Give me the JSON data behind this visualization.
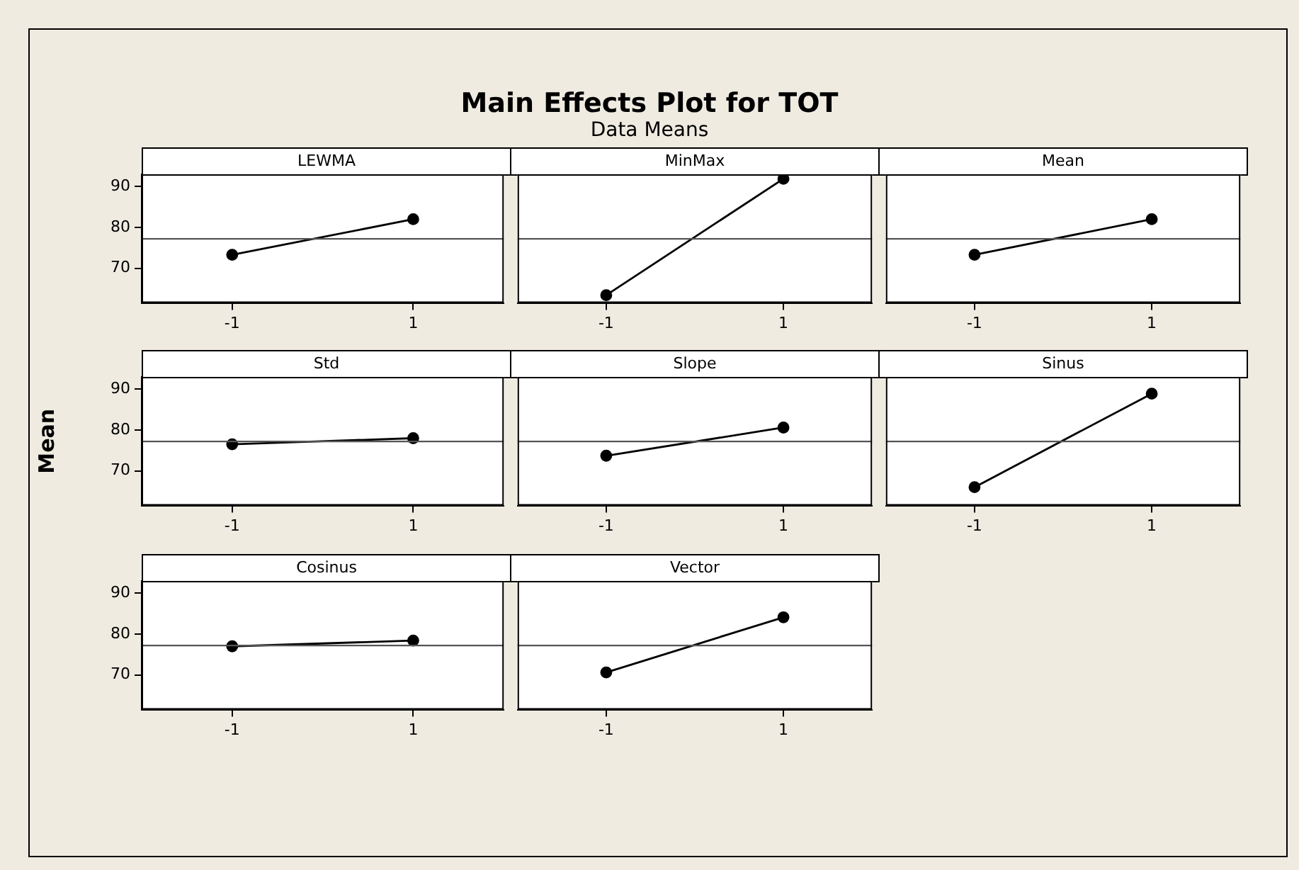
{
  "chart_data": [
    {
      "type": "other",
      "title": "Main Effects Plot for TOT",
      "subtitle": "Data Means"
    },
    {
      "type": "line",
      "title": "LEWMA",
      "categories": [
        "-1",
        "1"
      ],
      "series": [
        {
          "color": "#000000",
          "values": [
            73.3,
            82.0
          ]
        }
      ],
      "ylim": [
        61.5,
        93
      ],
      "yticks": [
        70,
        80,
        90
      ],
      "ref_lines": [
        {
          "axis": "y",
          "value": 77.2,
          "color": "#555555"
        }
      ],
      "marker": "circle",
      "grid": false
    },
    {
      "type": "line",
      "title": "MinMax",
      "categories": [
        "-1",
        "1"
      ],
      "series": [
        {
          "color": "#000000",
          "values": [
            63.4,
            91.9
          ]
        }
      ],
      "ylim": [
        61.5,
        93
      ],
      "yticks": [
        70,
        80,
        90
      ],
      "ref_lines": [
        {
          "axis": "y",
          "value": 77.2,
          "color": "#555555"
        }
      ],
      "marker": "circle",
      "grid": false,
      "tick_labels": "x"
    },
    {
      "type": "line",
      "title": "Mean",
      "categories": [
        "-1",
        "1"
      ],
      "series": [
        {
          "color": "#000000",
          "values": [
            73.3,
            82.0
          ]
        }
      ],
      "ylim": [
        61.5,
        93
      ],
      "yticks": [
        70,
        80,
        90
      ],
      "ref_lines": [
        {
          "axis": "y",
          "value": 77.2,
          "color": "#555555"
        }
      ],
      "marker": "circle",
      "grid": false,
      "tick_labels": "x"
    },
    {
      "type": "line",
      "title": "Std",
      "ylabel": "Mean",
      "categories": [
        "-1",
        "1"
      ],
      "series": [
        {
          "color": "#000000",
          "values": [
            76.5,
            78.0
          ]
        }
      ],
      "ylim": [
        61.5,
        93
      ],
      "yticks": [
        70,
        80,
        90
      ],
      "ref_lines": [
        {
          "axis": "y",
          "value": 77.2,
          "color": "#555555"
        }
      ],
      "marker": "circle",
      "grid": false
    },
    {
      "type": "line",
      "title": "Slope",
      "categories": [
        "-1",
        "1"
      ],
      "series": [
        {
          "color": "#000000",
          "values": [
            73.7,
            80.6
          ]
        }
      ],
      "ylim": [
        61.5,
        93
      ],
      "yticks": [
        70,
        80,
        90
      ],
      "ref_lines": [
        {
          "axis": "y",
          "value": 77.2,
          "color": "#555555"
        }
      ],
      "marker": "circle",
      "grid": false,
      "tick_labels": "x"
    },
    {
      "type": "line",
      "title": "Sinus",
      "categories": [
        "-1",
        "1"
      ],
      "series": [
        {
          "color": "#000000",
          "values": [
            66.0,
            88.9
          ]
        }
      ],
      "ylim": [
        61.5,
        93
      ],
      "yticks": [
        70,
        80,
        90
      ],
      "ref_lines": [
        {
          "axis": "y",
          "value": 77.2,
          "color": "#555555"
        }
      ],
      "marker": "circle",
      "grid": false,
      "tick_labels": "x"
    },
    {
      "type": "line",
      "title": "Cosinus",
      "categories": [
        "-1",
        "1"
      ],
      "series": [
        {
          "color": "#000000",
          "values": [
            77.0,
            78.4
          ]
        }
      ],
      "ylim": [
        61.5,
        93
      ],
      "yticks": [
        70,
        80,
        90
      ],
      "ref_lines": [
        {
          "axis": "y",
          "value": 77.2,
          "color": "#555555"
        }
      ],
      "marker": "circle",
      "grid": false
    },
    {
      "type": "line",
      "title": "Vector",
      "categories": [
        "-1",
        "1"
      ],
      "series": [
        {
          "color": "#000000",
          "values": [
            70.6,
            84.1
          ]
        }
      ],
      "ylim": [
        61.5,
        93
      ],
      "yticks": [
        70,
        80,
        90
      ],
      "ref_lines": [
        {
          "axis": "y",
          "value": 77.2,
          "color": "#555555"
        }
      ],
      "marker": "circle",
      "grid": false,
      "tick_labels": "x"
    }
  ]
}
